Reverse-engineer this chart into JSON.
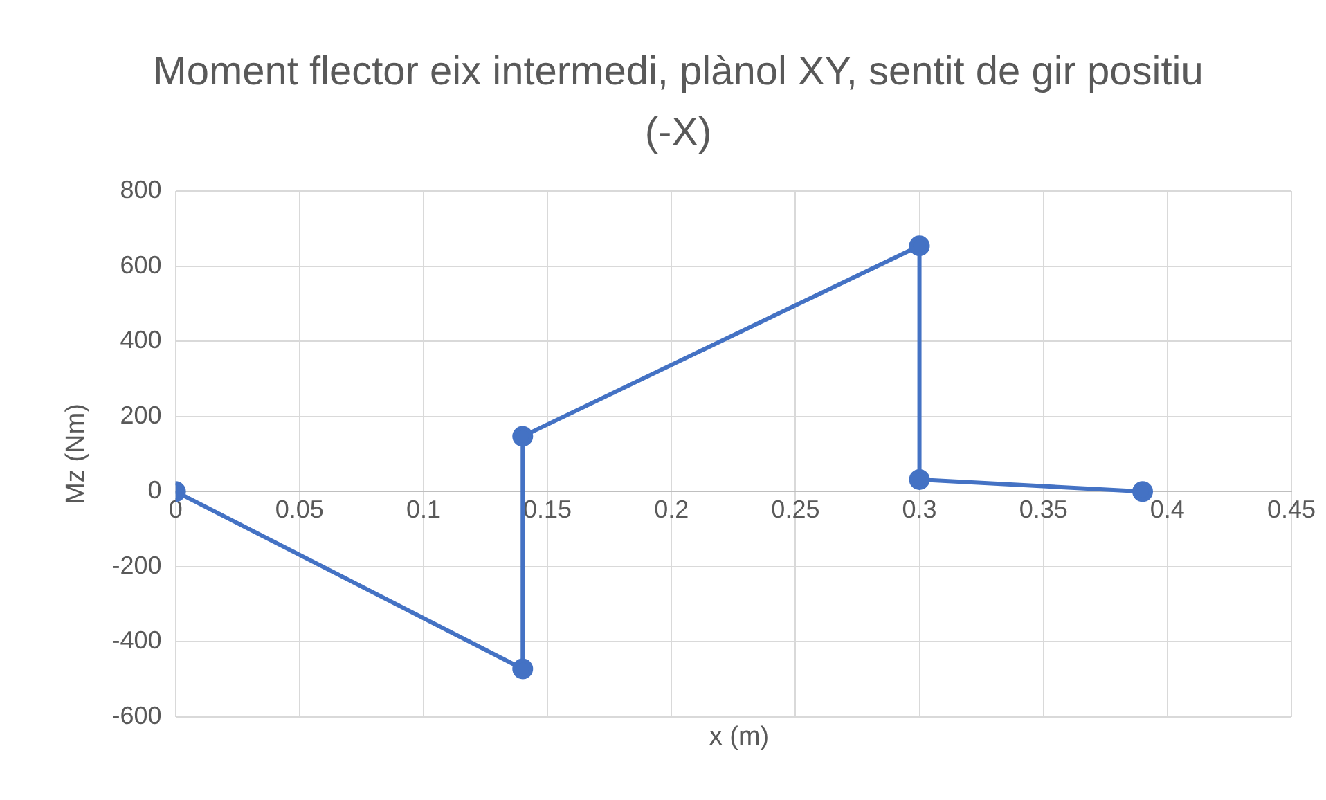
{
  "chart_data": {
    "type": "line",
    "title": "Moment flector eix intermedi, plànol XY, sentit de gir positiu (-X)",
    "xlabel": "x (m)",
    "ylabel": "Mz (Nm)",
    "series": [
      {
        "color": "#4472c4",
        "x": [
          0,
          0.14,
          0.14,
          0.3,
          0.3,
          0.39
        ],
        "values": [
          0,
          -472,
          147,
          654,
          32,
          0
        ]
      }
    ],
    "xlim": [
      0,
      0.45
    ],
    "xticks": [
      0,
      0.05,
      0.1,
      0.15,
      0.2,
      0.25,
      0.3,
      0.35,
      0.4,
      0.45
    ],
    "ylim": [
      -600,
      800
    ],
    "yticks": [
      -600,
      -400,
      -200,
      0,
      200,
      400,
      600,
      800
    ],
    "grid": true,
    "legend": false,
    "marker": "circle",
    "line_style": "solid"
  }
}
